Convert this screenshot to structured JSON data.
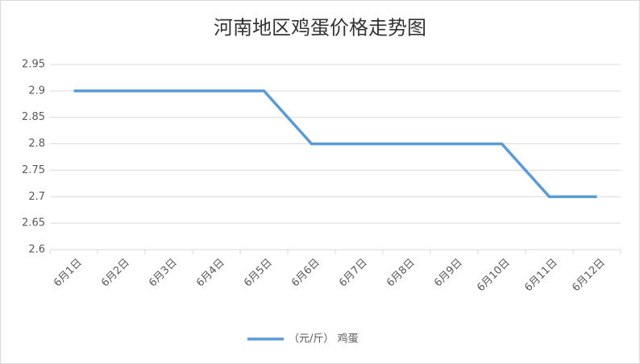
{
  "chart_data": {
    "type": "line",
    "title": "河南地区鸡蛋价格走势图",
    "categories": [
      "6月1日",
      "6月2日",
      "6月3日",
      "6月4日",
      "6月5日",
      "6月6日",
      "6月7日",
      "6月8日",
      "6月9日",
      "6月10日",
      "6月11日",
      "6月12日"
    ],
    "series": [
      {
        "name": "（元/斤） 鸡蛋",
        "color": "#5b9bd5",
        "values": [
          2.9,
          2.9,
          2.9,
          2.9,
          2.9,
          2.8,
          2.8,
          2.8,
          2.8,
          2.8,
          2.7,
          2.7
        ]
      }
    ],
    "ylim": [
      2.6,
      2.95
    ],
    "yticks": [
      2.6,
      2.65,
      2.7,
      2.75,
      2.8,
      2.85,
      2.9,
      2.95
    ],
    "grid": true,
    "legend": "bottom"
  }
}
